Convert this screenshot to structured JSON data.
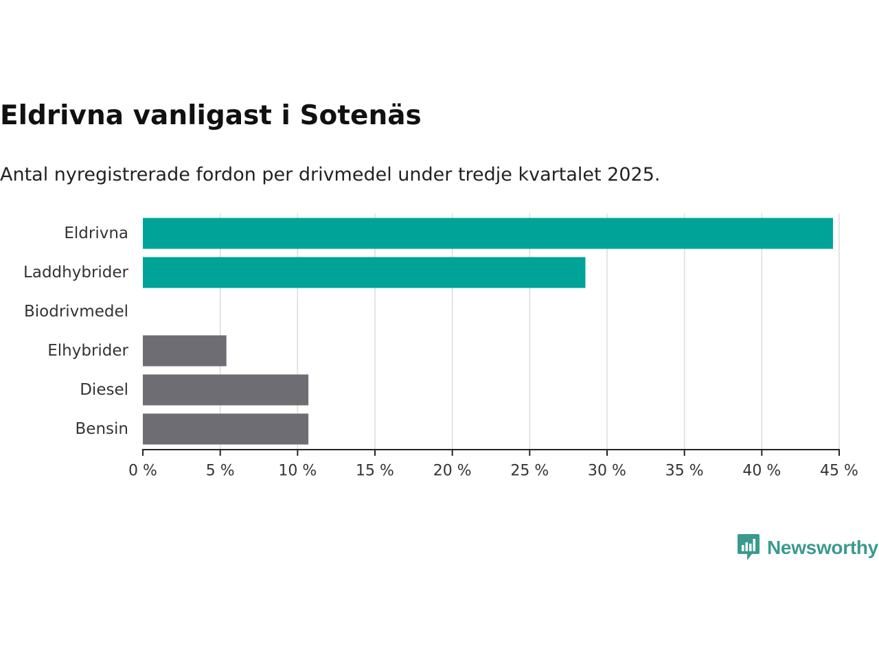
{
  "header": {
    "title": "Eldrivna vanligast i Sotenäs",
    "subtitle": "Antal nyregistrerade fordon per drivmedel under tredje kvartalet 2025."
  },
  "chart_data": {
    "type": "bar",
    "orientation": "horizontal",
    "title": "Eldrivna vanligast i Sotenäs",
    "subtitle": "Antal nyregistrerade fordon per drivmedel under tredje kvartalet 2025.",
    "xlabel": "",
    "ylabel": "",
    "xlim": [
      0,
      45
    ],
    "unit": "%",
    "grid": true,
    "categories": [
      "Eldrivna",
      "Laddhybrider",
      "Biodrivmedel",
      "Elhybrider",
      "Diesel",
      "Bensin"
    ],
    "values": [
      44.6,
      28.6,
      0,
      5.4,
      10.7,
      10.7
    ],
    "bar_colors": [
      "#00a398",
      "#00a398",
      "#6e6d73",
      "#6e6d73",
      "#6e6d73",
      "#6e6d73"
    ],
    "ticks": [
      0,
      5,
      10,
      15,
      20,
      25,
      30,
      35,
      40,
      45
    ],
    "tick_labels": [
      "0 %",
      "5 %",
      "10 %",
      "15 %",
      "20 %",
      "25 %",
      "30 %",
      "35 %",
      "40 %",
      "45 %"
    ]
  },
  "branding": {
    "name": "Newsworthy",
    "color": "#3a9a8f",
    "logo_icon": "newsworthy-logo-icon"
  }
}
